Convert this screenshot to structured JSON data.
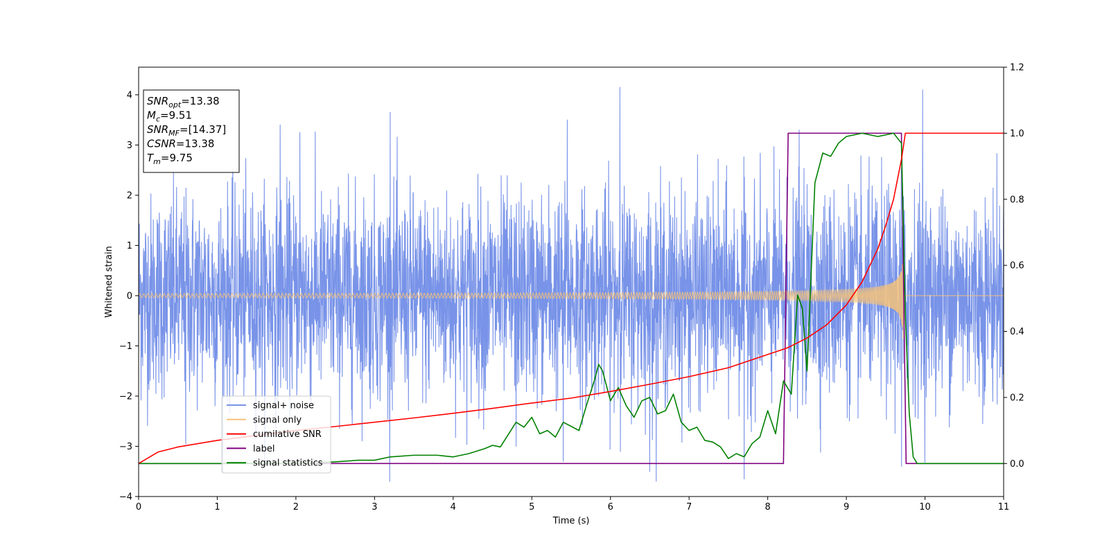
{
  "chart_data": {
    "type": "line",
    "xlabel": "Time (s)",
    "ylabel": "Whitened strain",
    "xlim": [
      0,
      11
    ],
    "ylim_left": [
      -4,
      4.55
    ],
    "ylim_right": [
      -0.1,
      1.2
    ],
    "x_ticks": [
      0,
      1,
      2,
      3,
      4,
      5,
      6,
      7,
      8,
      9,
      10,
      11
    ],
    "y_ticks_left": [
      -4,
      -3,
      -2,
      -1,
      0,
      1,
      2,
      3,
      4
    ],
    "y_ticks_right": [
      0.0,
      0.2,
      0.4,
      0.6,
      0.8,
      1.0,
      1.2
    ],
    "legend_position": "lower-left",
    "annotation": [
      {
        "base": "SNR",
        "sub": "opt",
        "rest": "=13.38"
      },
      {
        "base": "M",
        "sub": "c",
        "rest": "=9.51"
      },
      {
        "base": "SNR",
        "sub": "MF",
        "rest": "=[14.37]"
      },
      {
        "base": "CSNR",
        "sub": "",
        "rest": "=13.38"
      },
      {
        "base": "T",
        "sub": "m",
        "rest": "=9.75"
      }
    ],
    "series": [
      {
        "name": "signal+ noise",
        "color": "#7893e8",
        "axis": "left",
        "noise_std_estimate": 1.0,
        "spikes": [
          [
            0.6,
            -2.95
          ],
          [
            1.8,
            3.4
          ],
          [
            2.05,
            3.25
          ],
          [
            3.2,
            3.65
          ],
          [
            4.8,
            -3.0
          ],
          [
            5.4,
            -3.3
          ],
          [
            5.45,
            3.5
          ],
          [
            6.12,
            4.15
          ],
          [
            6.5,
            -3.5
          ],
          [
            7.7,
            -3.65
          ],
          [
            8.4,
            3.3
          ],
          [
            9.7,
            -3.4
          ],
          [
            9.97,
            4.1
          ]
        ]
      },
      {
        "name": "signal only",
        "color": "#f5c27a",
        "axis": "left",
        "merger_time": 9.73,
        "amplitude_start": 0.04,
        "amplitude_peak": 0.95
      },
      {
        "name": "cumilative SNR",
        "color": "#ff0000",
        "axis": "right",
        "x": [
          0,
          0.25,
          0.5,
          1,
          1.5,
          2,
          2.5,
          3,
          3.5,
          4,
          4.5,
          5,
          5.5,
          6,
          6.5,
          7,
          7.5,
          8,
          8.25,
          8.5,
          8.75,
          9,
          9.2,
          9.4,
          9.5,
          9.6,
          9.7,
          9.75,
          11
        ],
        "y": [
          0.0,
          0.035,
          0.05,
          0.07,
          0.085,
          0.1,
          0.112,
          0.125,
          0.138,
          0.152,
          0.167,
          0.183,
          0.198,
          0.218,
          0.24,
          0.263,
          0.29,
          0.33,
          0.35,
          0.38,
          0.42,
          0.48,
          0.55,
          0.65,
          0.72,
          0.8,
          0.92,
          1.0,
          1.0
        ]
      },
      {
        "name": "label",
        "color": "#800080",
        "axis": "right",
        "x": [
          0,
          8.2,
          8.26,
          9.7,
          9.76,
          11
        ],
        "y": [
          0,
          0,
          1,
          1,
          0,
          0
        ]
      },
      {
        "name": "signal statistics",
        "color": "#008000",
        "axis": "right",
        "x": [
          0,
          2,
          2.5,
          2.8,
          3,
          3.2,
          3.5,
          3.8,
          4,
          4.2,
          4.4,
          4.5,
          4.6,
          4.8,
          4.9,
          5.0,
          5.1,
          5.2,
          5.3,
          5.4,
          5.6,
          5.7,
          5.8,
          5.85,
          5.9,
          6.0,
          6.1,
          6.2,
          6.3,
          6.4,
          6.5,
          6.6,
          6.7,
          6.8,
          6.9,
          7.0,
          7.1,
          7.2,
          7.3,
          7.4,
          7.5,
          7.6,
          7.7,
          7.8,
          7.9,
          8.0,
          8.1,
          8.2,
          8.3,
          8.38,
          8.44,
          8.5,
          8.6,
          8.7,
          8.8,
          8.9,
          9.0,
          9.2,
          9.4,
          9.6,
          9.7,
          9.75,
          9.8,
          9.85,
          9.9,
          10,
          11
        ],
        "y": [
          0,
          0,
          0.005,
          0.01,
          0.01,
          0.02,
          0.025,
          0.025,
          0.02,
          0.03,
          0.045,
          0.055,
          0.05,
          0.125,
          0.11,
          0.14,
          0.09,
          0.1,
          0.08,
          0.125,
          0.1,
          0.18,
          0.255,
          0.3,
          0.28,
          0.19,
          0.23,
          0.175,
          0.14,
          0.19,
          0.2,
          0.15,
          0.16,
          0.21,
          0.125,
          0.1,
          0.11,
          0.07,
          0.065,
          0.05,
          0.015,
          0.03,
          0.02,
          0.06,
          0.08,
          0.16,
          0.09,
          0.25,
          0.21,
          0.51,
          0.47,
          0.28,
          0.85,
          0.94,
          0.93,
          0.97,
          0.99,
          1.0,
          0.99,
          1.0,
          0.97,
          0.45,
          0.15,
          0.02,
          0.0,
          0.0,
          0.0
        ]
      }
    ]
  }
}
